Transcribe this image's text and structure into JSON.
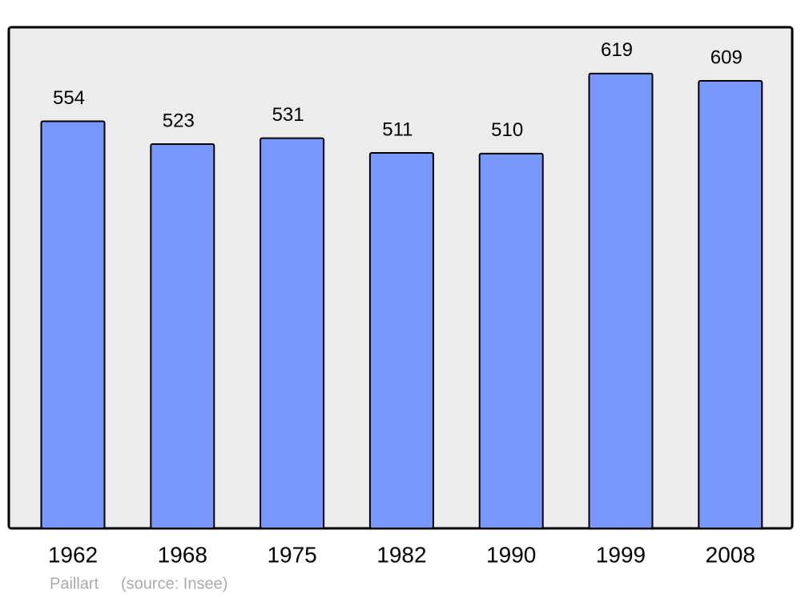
{
  "chart_data": {
    "type": "bar",
    "categories": [
      "1962",
      "1968",
      "1975",
      "1982",
      "1990",
      "1999",
      "2008"
    ],
    "values": [
      554,
      523,
      531,
      511,
      510,
      619,
      609
    ],
    "color": "#7799ff",
    "ylim": [
      0,
      682
    ],
    "credits": [
      "Paillart",
      "(source: Insee)"
    ]
  }
}
